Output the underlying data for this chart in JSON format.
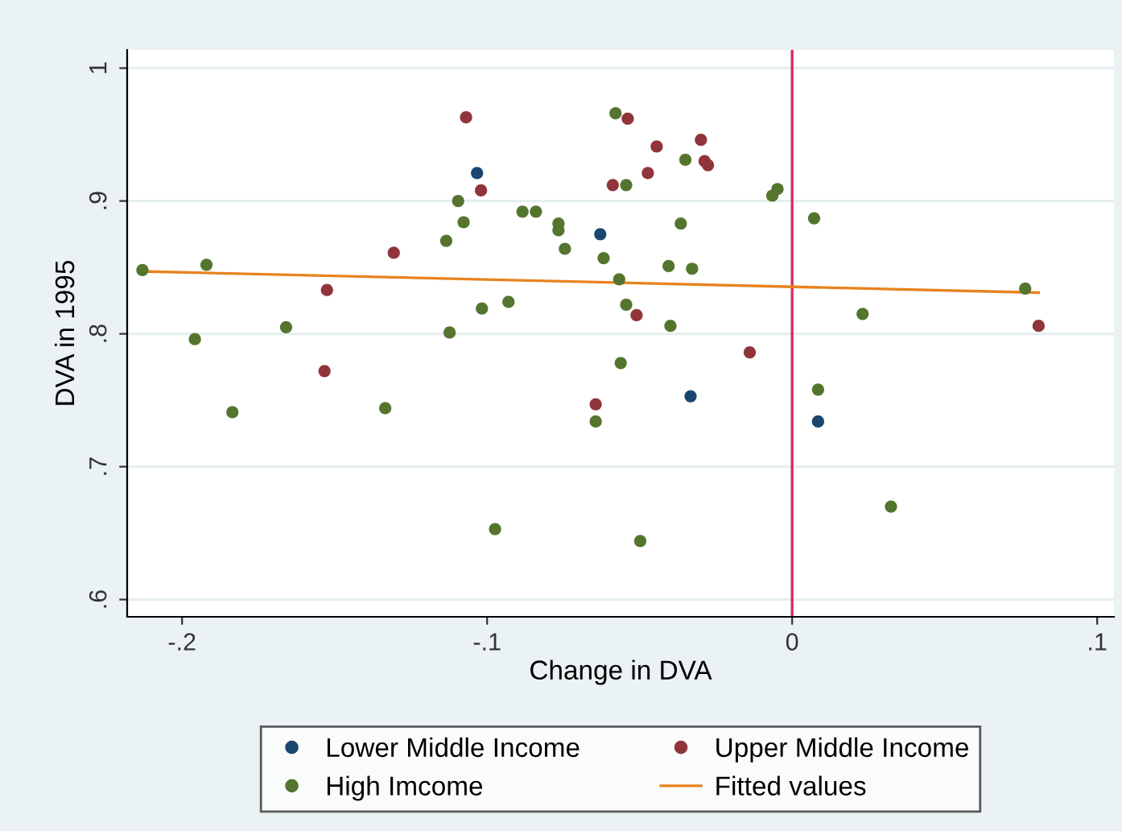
{
  "chart_data": {
    "type": "scatter",
    "xlabel": "Change in DVA",
    "ylabel": "DVA in 1995",
    "xlim": [
      -0.218,
      0.1055
    ],
    "ylim": [
      0.587,
      1.0137
    ],
    "xticks": [
      {
        "value": -0.2,
        "label": "-.2"
      },
      {
        "value": -0.1,
        "label": "-.1"
      },
      0,
      {
        "value": 0.1,
        "label": ".1"
      }
    ],
    "yticks": [
      {
        "value": 0.6,
        "label": ".6"
      },
      {
        "value": 0.7,
        "label": ".7"
      },
      {
        "value": 0.8,
        "label": ".8"
      },
      {
        "value": 0.9,
        "label": ".9"
      },
      1
    ],
    "grid": "y",
    "legend": "bottom",
    "marker": "circle",
    "ref_lines": [
      {
        "axis": "x",
        "value": 0,
        "color": "#d62b5a"
      }
    ],
    "series": [
      {
        "name": "Lower Middle Income",
        "color": "#1a476f",
        "x": [
          -0.1033,
          -0.0629,
          -0.0333,
          0.0085
        ],
        "values": [
          0.921,
          0.875,
          0.753,
          0.734
        ]
      },
      {
        "name": "Upper Middle Income",
        "color": "#90353b",
        "x": [
          -0.1525,
          -0.1306,
          -0.1069,
          -0.102,
          -0.0539,
          -0.0444,
          -0.0299,
          -0.0287,
          -0.0276,
          -0.0588,
          -0.0473,
          -0.051,
          0.0808,
          -0.0139,
          -0.1533,
          -0.0644
        ],
        "values": [
          0.833,
          0.861,
          0.963,
          0.908,
          0.962,
          0.941,
          0.946,
          0.93,
          0.927,
          0.912,
          0.921,
          0.814,
          0.806,
          0.786,
          0.772,
          0.747
        ]
      },
      {
        "name": "High Imcome",
        "color": "#55752f",
        "x": [
          -0.213,
          -0.192,
          -0.1134,
          -0.1095,
          -0.1077,
          -0.1017,
          -0.093,
          -0.0884,
          -0.084,
          -0.0766,
          -0.0766,
          -0.0745,
          -0.0618,
          -0.1123,
          -0.1958,
          -0.1659,
          -0.0579,
          -0.035,
          -0.0544,
          -0.0065,
          -0.0048,
          0.0072,
          -0.0365,
          -0.0405,
          -0.0328,
          -0.0567,
          -0.0544,
          -0.0399,
          0.0231,
          0.0764,
          -0.1835,
          -0.1334,
          -0.0644,
          -0.0974,
          -0.0562,
          0.0085,
          0.0324,
          -0.0498
        ],
        "values": [
          0.848,
          0.852,
          0.87,
          0.9,
          0.884,
          0.819,
          0.824,
          0.892,
          0.892,
          0.883,
          0.878,
          0.864,
          0.857,
          0.801,
          0.796,
          0.805,
          0.966,
          0.931,
          0.912,
          0.904,
          0.909,
          0.887,
          0.883,
          0.851,
          0.849,
          0.841,
          0.822,
          0.806,
          0.815,
          0.834,
          0.741,
          0.744,
          0.734,
          0.653,
          0.778,
          0.758,
          0.67,
          0.644
        ]
      },
      {
        "name": "Fitted values",
        "type": "line",
        "color": "#e8821e",
        "marker": "none",
        "line_style": "solid",
        "x": [
          -0.213,
          0.0808
        ],
        "values": [
          0.847,
          0.831
        ]
      }
    ]
  }
}
